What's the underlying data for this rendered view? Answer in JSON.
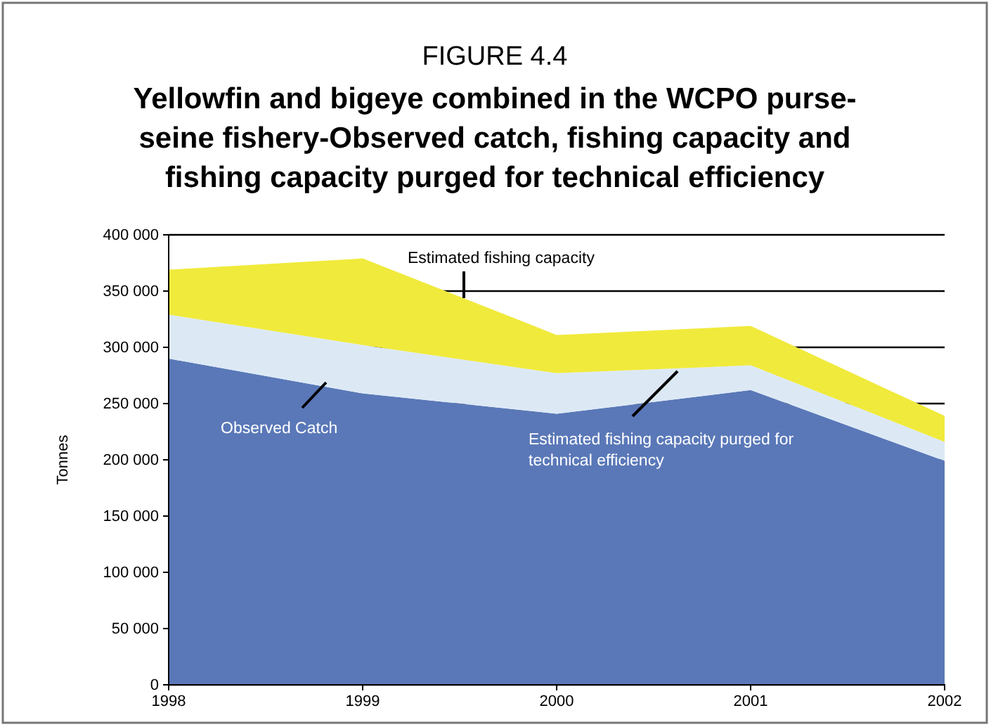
{
  "chart_data": {
    "type": "area",
    "title": "FIGURE 4.4",
    "subtitle": "Yellowfin and bigeye combined in the WCPO purse-seine fishery-Observed catch, fishing capacity and fishing capacity purged for technical efficiency",
    "ylabel": "Tonnes",
    "x": [
      1998,
      1999,
      2000,
      2001,
      2002
    ],
    "xlim": [
      1998,
      2002
    ],
    "xticks": [
      1998,
      1999,
      2000,
      2001,
      2002
    ],
    "ylim": [
      0,
      400000
    ],
    "yticks": [
      {
        "value": 0,
        "label": "0"
      },
      {
        "value": 50000,
        "label": "50 000"
      },
      {
        "value": 100000,
        "label": "100 000"
      },
      {
        "value": 150000,
        "label": "150 000"
      },
      {
        "value": 200000,
        "label": "200 000"
      },
      {
        "value": 250000,
        "label": "250 000"
      },
      {
        "value": 300000,
        "label": "300 000"
      },
      {
        "value": 350000,
        "label": "350 000"
      },
      {
        "value": 400000,
        "label": "400 000"
      }
    ],
    "grid": "y",
    "series": [
      {
        "name": "Estimated fishing capacity",
        "color": "#f0ea3c",
        "values": [
          369000,
          379000,
          311000,
          319000,
          239000
        ]
      },
      {
        "name": "Estimated fishing capacity purged for technical efficiency",
        "color": "#dce9f5",
        "values": [
          329000,
          302000,
          277000,
          284000,
          216000
        ]
      },
      {
        "name": "Observed Catch",
        "color": "#5a78b8",
        "values": [
          290000,
          259000,
          241000,
          262000,
          199000
        ]
      }
    ]
  }
}
